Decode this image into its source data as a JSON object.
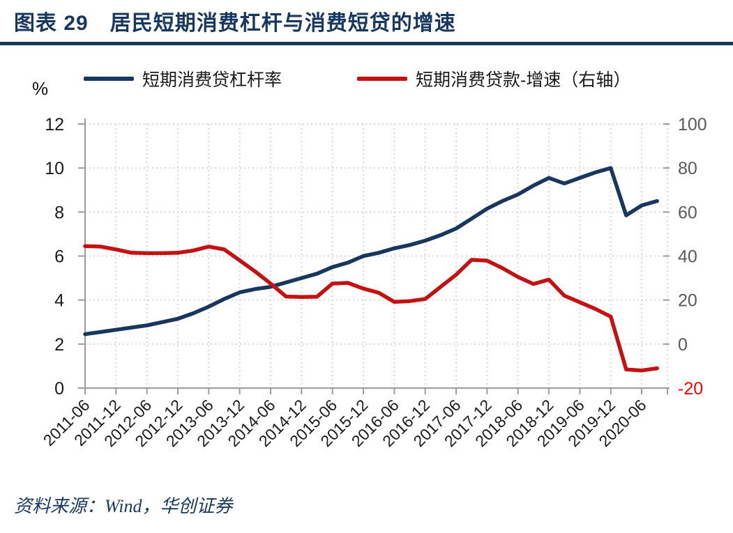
{
  "header": {
    "title": "图表 29　居民短期消费杠杆与消费短贷的增速"
  },
  "legend": [
    {
      "label": "短期消费贷杠杆率",
      "color": "#17375E"
    },
    {
      "label": "短期消费贷款-增速（右轴）",
      "color": "#C41111"
    }
  ],
  "source": {
    "text": "资料来源：Wind，华创证券"
  },
  "colors": {
    "accent_navy": "#17375E",
    "series_red": "#C41111",
    "right_axis_label": "#595959",
    "right_axis_negative_label": "#FF0000",
    "left_axis_label": "#1a1a1a",
    "gridline": "#D9D9D9",
    "axis_line": "#9B9B9B"
  },
  "chart_data": {
    "type": "line",
    "title": "居民短期消费杠杆与消费短贷的增速",
    "x": [
      "2011-06",
      "2011-09",
      "2011-12",
      "2012-03",
      "2012-06",
      "2012-09",
      "2012-12",
      "2013-03",
      "2013-06",
      "2013-09",
      "2013-12",
      "2014-03",
      "2014-06",
      "2014-09",
      "2014-12",
      "2015-03",
      "2015-06",
      "2015-09",
      "2015-12",
      "2016-03",
      "2016-06",
      "2016-09",
      "2016-12",
      "2017-03",
      "2017-06",
      "2017-09",
      "2017-12",
      "2018-03",
      "2018-06",
      "2018-09",
      "2018-12",
      "2019-03",
      "2019-06",
      "2019-09",
      "2019-12",
      "2020-03",
      "2020-06",
      "2020-09"
    ],
    "x_tick_labels": [
      "2011-06",
      "2011-12",
      "2012-06",
      "2012-12",
      "2013-06",
      "2013-12",
      "2014-06",
      "2014-12",
      "2015-06",
      "2015-12",
      "2016-06",
      "2016-12",
      "2017-06",
      "2017-12",
      "2018-06",
      "2018-12",
      "2019-06",
      "2019-12",
      "2020-06"
    ],
    "left_axis": {
      "unit": "%",
      "ticks": [
        0,
        2,
        4,
        6,
        8,
        10,
        12
      ],
      "range": [
        0,
        12
      ]
    },
    "right_axis": {
      "ticks": [
        -20,
        0,
        20,
        40,
        60,
        80,
        100
      ],
      "range": [
        -20,
        100
      ]
    },
    "grid": true,
    "legend_position": "top",
    "series": [
      {
        "name": "短期消费贷杠杆率",
        "axis": "left",
        "color": "#17375E",
        "values": [
          2.45,
          2.55,
          2.65,
          2.75,
          2.85,
          3.0,
          3.15,
          3.4,
          3.7,
          4.05,
          4.35,
          4.5,
          4.6,
          4.8,
          5.0,
          5.2,
          5.5,
          5.7,
          6.0,
          6.15,
          6.35,
          6.5,
          6.7,
          6.95,
          7.25,
          7.7,
          8.15,
          8.5,
          8.8,
          9.2,
          9.55,
          9.3,
          9.55,
          9.8,
          10.0,
          7.85,
          8.3,
          8.5
        ]
      },
      {
        "name": "短期消费贷款-增速（右轴）",
        "axis": "right",
        "color": "#C41111",
        "values": [
          44.5,
          44.3,
          43.0,
          41.5,
          41.3,
          41.3,
          41.5,
          42.5,
          44.3,
          43.0,
          38.0,
          33.0,
          27.5,
          21.6,
          21.4,
          21.5,
          27.5,
          27.8,
          25.2,
          23.3,
          19.2,
          19.5,
          20.5,
          26.0,
          31.5,
          38.3,
          37.9,
          34.5,
          30.5,
          27.3,
          29.3,
          22.0,
          19.0,
          16.0,
          12.5,
          -11.5,
          -12.0,
          -11.0
        ]
      }
    ]
  }
}
